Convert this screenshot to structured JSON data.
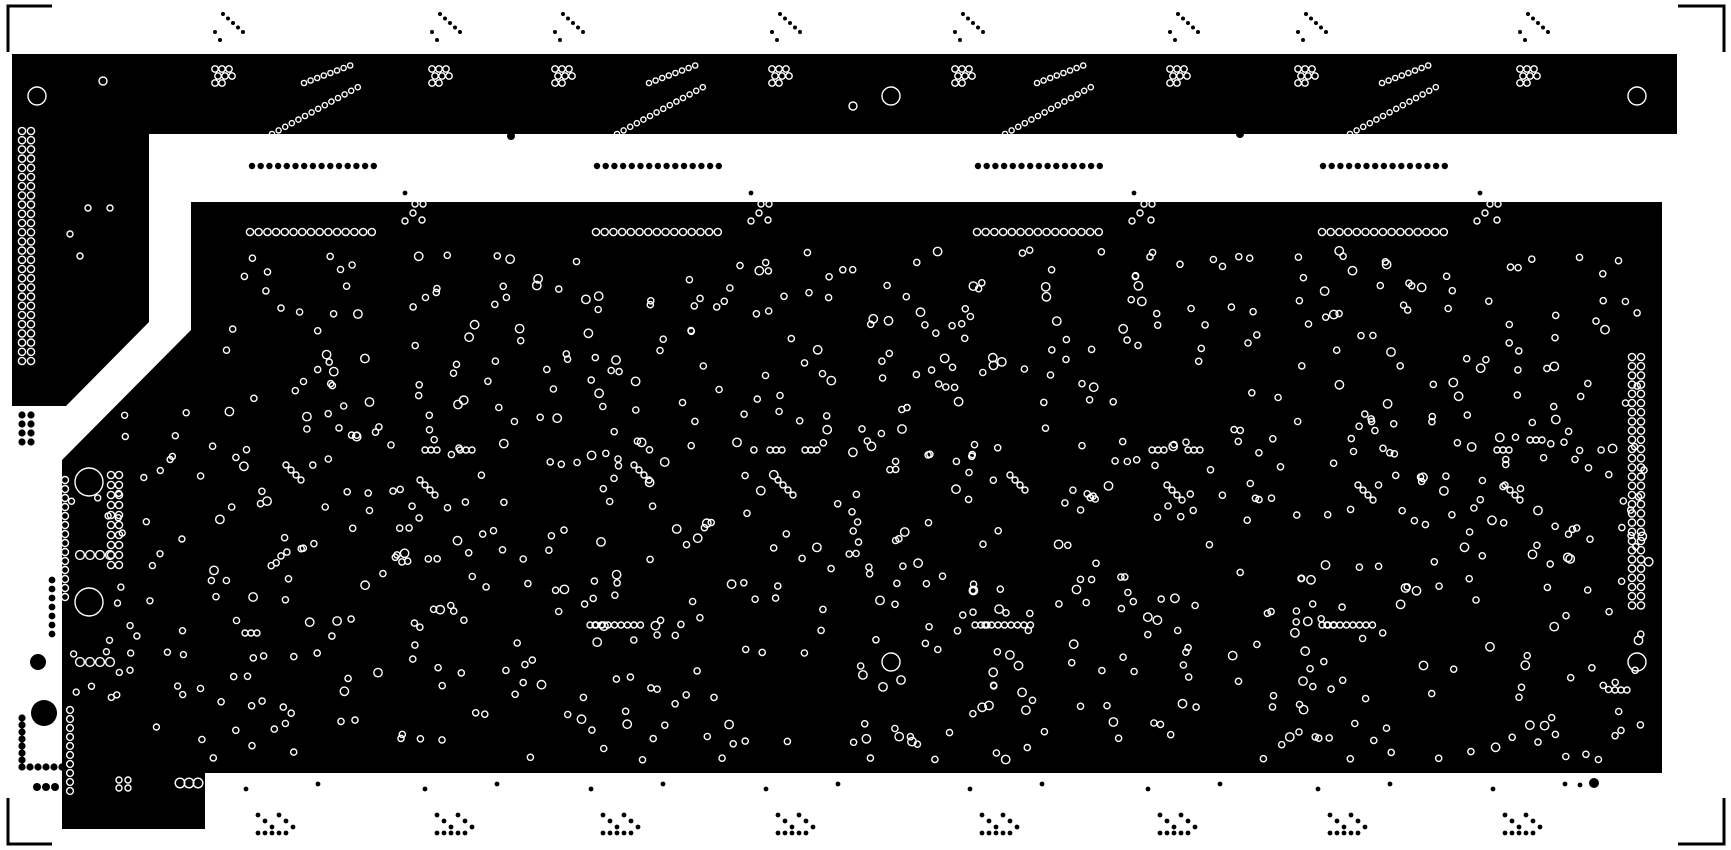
{
  "image": {
    "kind": "pcb-copper-layer-artwork",
    "layer_style": "monochrome",
    "has_visible_text": false
  },
  "colors": {
    "background": "#ffffff",
    "copper_fill": "#000000",
    "drill_hole": "#ffffff",
    "solid_pad": "#000000",
    "crop_mark": "#000000"
  },
  "icons": {
    "corner_marks": "crop-mark-icon",
    "holes": "via-icon",
    "pads": "pad-icon"
  }
}
